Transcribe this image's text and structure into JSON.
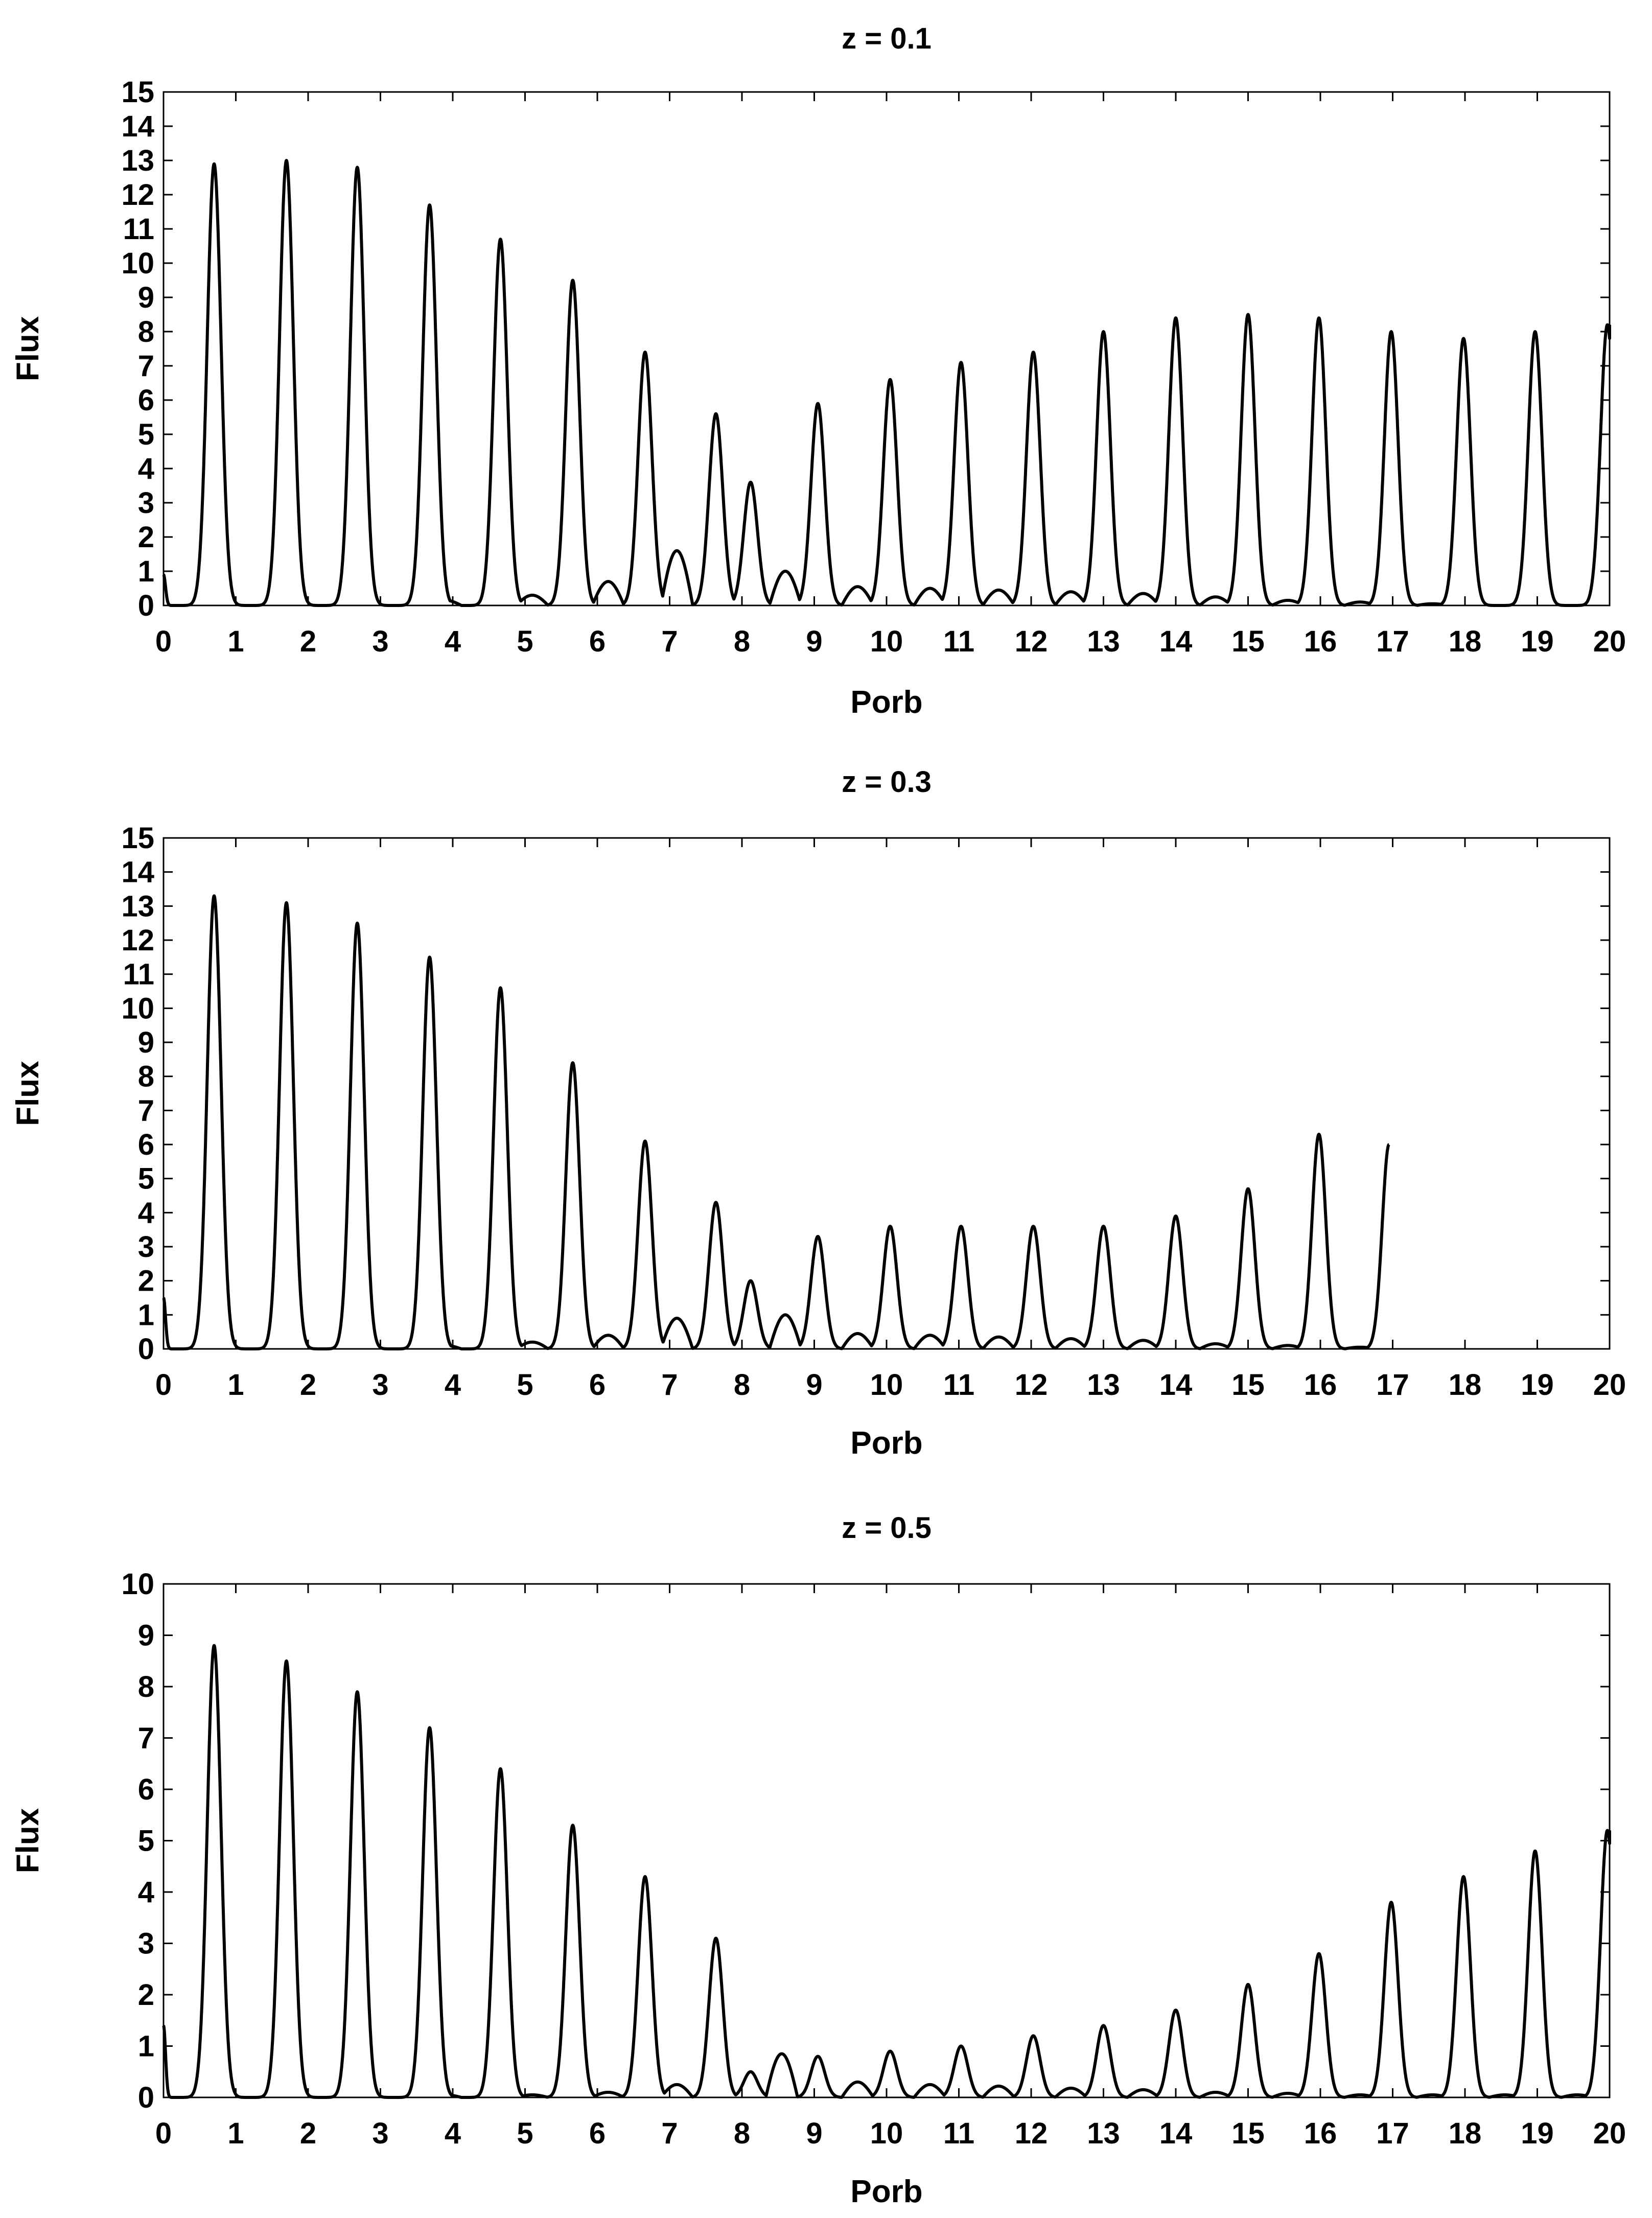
{
  "chart_data": [
    {
      "type": "line",
      "title": "z = 0.1",
      "xlabel": "Porb",
      "ylabel": "Flux",
      "xlim": [
        0,
        20
      ],
      "ylim": [
        0,
        15
      ],
      "xticks": [
        "0",
        "1",
        "2",
        "3",
        "4",
        "5",
        "6",
        "7",
        "8",
        "9",
        "10",
        "11",
        "12",
        "13",
        "14",
        "15",
        "16",
        "17",
        "18",
        "19",
        "20"
      ],
      "yticks": [
        "0",
        "1",
        "2",
        "3",
        "4",
        "5",
        "6",
        "7",
        "8",
        "9",
        "10",
        "11",
        "12",
        "13",
        "14",
        "15"
      ],
      "grid": false,
      "series": [
        {
          "name": "flux",
          "color": "#000000",
          "x_end": 20,
          "start_flux": 0.9,
          "peaks": [
            {
              "x": 0.7,
              "flux": 12.9
            },
            {
              "x": 1.7,
              "flux": 13.0
            },
            {
              "x": 2.68,
              "flux": 12.8
            },
            {
              "x": 3.68,
              "flux": 11.7
            },
            {
              "x": 4.66,
              "flux": 10.7
            },
            {
              "x": 5.66,
              "flux": 9.5
            },
            {
              "x": 6.66,
              "flux": 7.4
            },
            {
              "x": 7.64,
              "flux": 5.6
            },
            {
              "x": 8.12,
              "flux": 3.6
            },
            {
              "x": 9.05,
              "flux": 5.9
            },
            {
              "x": 10.05,
              "flux": 6.6
            },
            {
              "x": 11.03,
              "flux": 7.1
            },
            {
              "x": 12.03,
              "flux": 7.4
            },
            {
              "x": 13.0,
              "flux": 8.0
            },
            {
              "x": 14.0,
              "flux": 8.4
            },
            {
              "x": 15.0,
              "flux": 8.5
            },
            {
              "x": 15.98,
              "flux": 8.4
            },
            {
              "x": 16.98,
              "flux": 8.0
            },
            {
              "x": 17.98,
              "flux": 7.8
            },
            {
              "x": 18.97,
              "flux": 8.0
            },
            {
              "x": 19.97,
              "flux": 8.2
            }
          ],
          "bumps": [
            {
              "x": 3.9,
              "flux": 0.15
            },
            {
              "x": 5.1,
              "flux": 0.3
            },
            {
              "x": 6.15,
              "flux": 0.7
            },
            {
              "x": 7.1,
              "flux": 1.6
            },
            {
              "x": 8.6,
              "flux": 1.0
            },
            {
              "x": 9.6,
              "flux": 0.55
            },
            {
              "x": 10.6,
              "flux": 0.5
            },
            {
              "x": 11.55,
              "flux": 0.45
            },
            {
              "x": 12.55,
              "flux": 0.4
            },
            {
              "x": 13.55,
              "flux": 0.35
            },
            {
              "x": 14.55,
              "flux": 0.25
            },
            {
              "x": 15.55,
              "flux": 0.15
            },
            {
              "x": 16.55,
              "flux": 0.1
            },
            {
              "x": 17.55,
              "flux": 0.05
            }
          ]
        }
      ]
    },
    {
      "type": "line",
      "title": "z = 0.3",
      "xlabel": "Porb",
      "ylabel": "Flux",
      "xlim": [
        0,
        20
      ],
      "ylim": [
        0,
        15
      ],
      "xticks": [
        "0",
        "1",
        "2",
        "3",
        "4",
        "5",
        "6",
        "7",
        "8",
        "9",
        "10",
        "11",
        "12",
        "13",
        "14",
        "15",
        "16",
        "17",
        "18",
        "19",
        "20"
      ],
      "yticks": [
        "0",
        "1",
        "2",
        "3",
        "4",
        "5",
        "6",
        "7",
        "8",
        "9",
        "10",
        "11",
        "12",
        "13",
        "14",
        "15"
      ],
      "grid": false,
      "series": [
        {
          "name": "flux",
          "color": "#000000",
          "x_end": 16.95,
          "start_flux": 1.5,
          "peaks": [
            {
              "x": 0.7,
              "flux": 13.3
            },
            {
              "x": 1.7,
              "flux": 13.1
            },
            {
              "x": 2.68,
              "flux": 12.5
            },
            {
              "x": 3.68,
              "flux": 11.5
            },
            {
              "x": 4.66,
              "flux": 10.6
            },
            {
              "x": 5.66,
              "flux": 8.4
            },
            {
              "x": 6.66,
              "flux": 6.1
            },
            {
              "x": 7.64,
              "flux": 4.3
            },
            {
              "x": 8.12,
              "flux": 2.0
            },
            {
              "x": 9.05,
              "flux": 3.3
            },
            {
              "x": 10.05,
              "flux": 3.6
            },
            {
              "x": 11.03,
              "flux": 3.6
            },
            {
              "x": 12.03,
              "flux": 3.6
            },
            {
              "x": 13.0,
              "flux": 3.6
            },
            {
              "x": 14.0,
              "flux": 3.9
            },
            {
              "x": 15.0,
              "flux": 4.7
            },
            {
              "x": 15.98,
              "flux": 6.3
            },
            {
              "x": 16.95,
              "flux": 6.0
            }
          ],
          "bumps": [
            {
              "x": 3.9,
              "flux": 0.1
            },
            {
              "x": 5.1,
              "flux": 0.2
            },
            {
              "x": 6.15,
              "flux": 0.4
            },
            {
              "x": 7.1,
              "flux": 0.9
            },
            {
              "x": 8.6,
              "flux": 1.0
            },
            {
              "x": 9.6,
              "flux": 0.45
            },
            {
              "x": 10.6,
              "flux": 0.4
            },
            {
              "x": 11.55,
              "flux": 0.35
            },
            {
              "x": 12.55,
              "flux": 0.3
            },
            {
              "x": 13.55,
              "flux": 0.25
            },
            {
              "x": 14.55,
              "flux": 0.15
            },
            {
              "x": 15.55,
              "flux": 0.1
            },
            {
              "x": 16.55,
              "flux": 0.05
            }
          ]
        }
      ]
    },
    {
      "type": "line",
      "title": "z = 0.5",
      "xlabel": "Porb",
      "ylabel": "Flux",
      "xlim": [
        0,
        20
      ],
      "ylim": [
        0,
        10
      ],
      "xticks": [
        "0",
        "1",
        "2",
        "3",
        "4",
        "5",
        "6",
        "7",
        "8",
        "9",
        "10",
        "11",
        "12",
        "13",
        "14",
        "15",
        "16",
        "17",
        "18",
        "19",
        "20"
      ],
      "yticks": [
        "0",
        "1",
        "2",
        "3",
        "4",
        "5",
        "6",
        "7",
        "8",
        "9",
        "10"
      ],
      "grid": false,
      "series": [
        {
          "name": "flux",
          "color": "#000000",
          "x_end": 20,
          "start_flux": 1.4,
          "peaks": [
            {
              "x": 0.7,
              "flux": 8.8
            },
            {
              "x": 1.7,
              "flux": 8.5
            },
            {
              "x": 2.68,
              "flux": 7.9
            },
            {
              "x": 3.68,
              "flux": 7.2
            },
            {
              "x": 4.66,
              "flux": 6.4
            },
            {
              "x": 5.66,
              "flux": 5.3
            },
            {
              "x": 6.66,
              "flux": 4.3
            },
            {
              "x": 7.64,
              "flux": 3.1
            },
            {
              "x": 8.12,
              "flux": 0.5
            },
            {
              "x": 9.05,
              "flux": 0.8
            },
            {
              "x": 10.05,
              "flux": 0.9
            },
            {
              "x": 11.03,
              "flux": 1.0
            },
            {
              "x": 12.03,
              "flux": 1.2
            },
            {
              "x": 13.0,
              "flux": 1.4
            },
            {
              "x": 14.0,
              "flux": 1.7
            },
            {
              "x": 15.0,
              "flux": 2.2
            },
            {
              "x": 15.98,
              "flux": 2.8
            },
            {
              "x": 16.98,
              "flux": 3.8
            },
            {
              "x": 17.98,
              "flux": 4.3
            },
            {
              "x": 18.97,
              "flux": 4.8
            },
            {
              "x": 19.97,
              "flux": 5.2
            }
          ],
          "bumps": [
            {
              "x": 3.9,
              "flux": 0.05
            },
            {
              "x": 5.1,
              "flux": 0.05
            },
            {
              "x": 6.15,
              "flux": 0.1
            },
            {
              "x": 7.1,
              "flux": 0.25
            },
            {
              "x": 8.55,
              "flux": 0.85
            },
            {
              "x": 9.6,
              "flux": 0.3
            },
            {
              "x": 10.6,
              "flux": 0.25
            },
            {
              "x": 11.55,
              "flux": 0.22
            },
            {
              "x": 12.55,
              "flux": 0.18
            },
            {
              "x": 13.55,
              "flux": 0.15
            },
            {
              "x": 14.55,
              "flux": 0.1
            },
            {
              "x": 15.55,
              "flux": 0.08
            },
            {
              "x": 16.55,
              "flux": 0.05
            },
            {
              "x": 17.55,
              "flux": 0.05
            },
            {
              "x": 18.55,
              "flux": 0.05
            },
            {
              "x": 19.55,
              "flux": 0.05
            }
          ]
        }
      ]
    }
  ]
}
